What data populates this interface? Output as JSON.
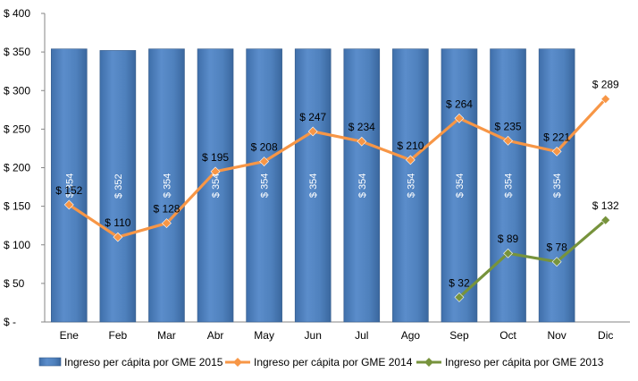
{
  "chart_data": {
    "type": "bar",
    "categories": [
      "Ene",
      "Feb",
      "Mar",
      "Abr",
      "May",
      "Jun",
      "Jul",
      "Ago",
      "Sep",
      "Oct",
      "Nov",
      "Dic"
    ],
    "ylim": [
      0,
      400
    ],
    "y_ticks": [
      0,
      50,
      100,
      150,
      200,
      250,
      300,
      350,
      400
    ],
    "y_tick_labels": [
      "$ -",
      "$ 50",
      "$ 100",
      "$ 150",
      "$ 200",
      "$ 250",
      "$ 300",
      "$ 350",
      "$ 400"
    ],
    "grid": false,
    "legend_position": "bottom",
    "series": [
      {
        "name": "Ingreso per cápita por GME 2015",
        "type": "bar",
        "color": "#4F81BD",
        "values": [
          354,
          352,
          354,
          354,
          354,
          354,
          354,
          354,
          354,
          354,
          354,
          null
        ],
        "labels": [
          "$ 354",
          "$ 352",
          "$ 354",
          "$ 354",
          "$ 354",
          "$ 354",
          "$ 354",
          "$ 354",
          "$ 354",
          "$ 354",
          "$ 354",
          ""
        ]
      },
      {
        "name": "Ingreso per cápita por GME 2014",
        "type": "line",
        "color": "#F79646",
        "marker": "diamond",
        "values": [
          152,
          110,
          128,
          195,
          208,
          247,
          234,
          210,
          264,
          235,
          221,
          289
        ],
        "labels": [
          "$ 152",
          "$ 110",
          "$ 128",
          "$ 195",
          "$ 208",
          "$ 247",
          "$ 234",
          "$ 210",
          "$ 264",
          "$ 235",
          "$ 221",
          "$ 289"
        ]
      },
      {
        "name": "Ingreso per cápita por GME 2013",
        "type": "line",
        "color": "#77933C",
        "marker": "diamond",
        "values": [
          null,
          null,
          null,
          null,
          null,
          null,
          null,
          null,
          32,
          89,
          78,
          132
        ],
        "labels": [
          "",
          "",
          "",
          "",
          "",
          "",
          "",
          "",
          "$ 32",
          "$ 89",
          "$ 78",
          "$ 132"
        ]
      }
    ]
  }
}
